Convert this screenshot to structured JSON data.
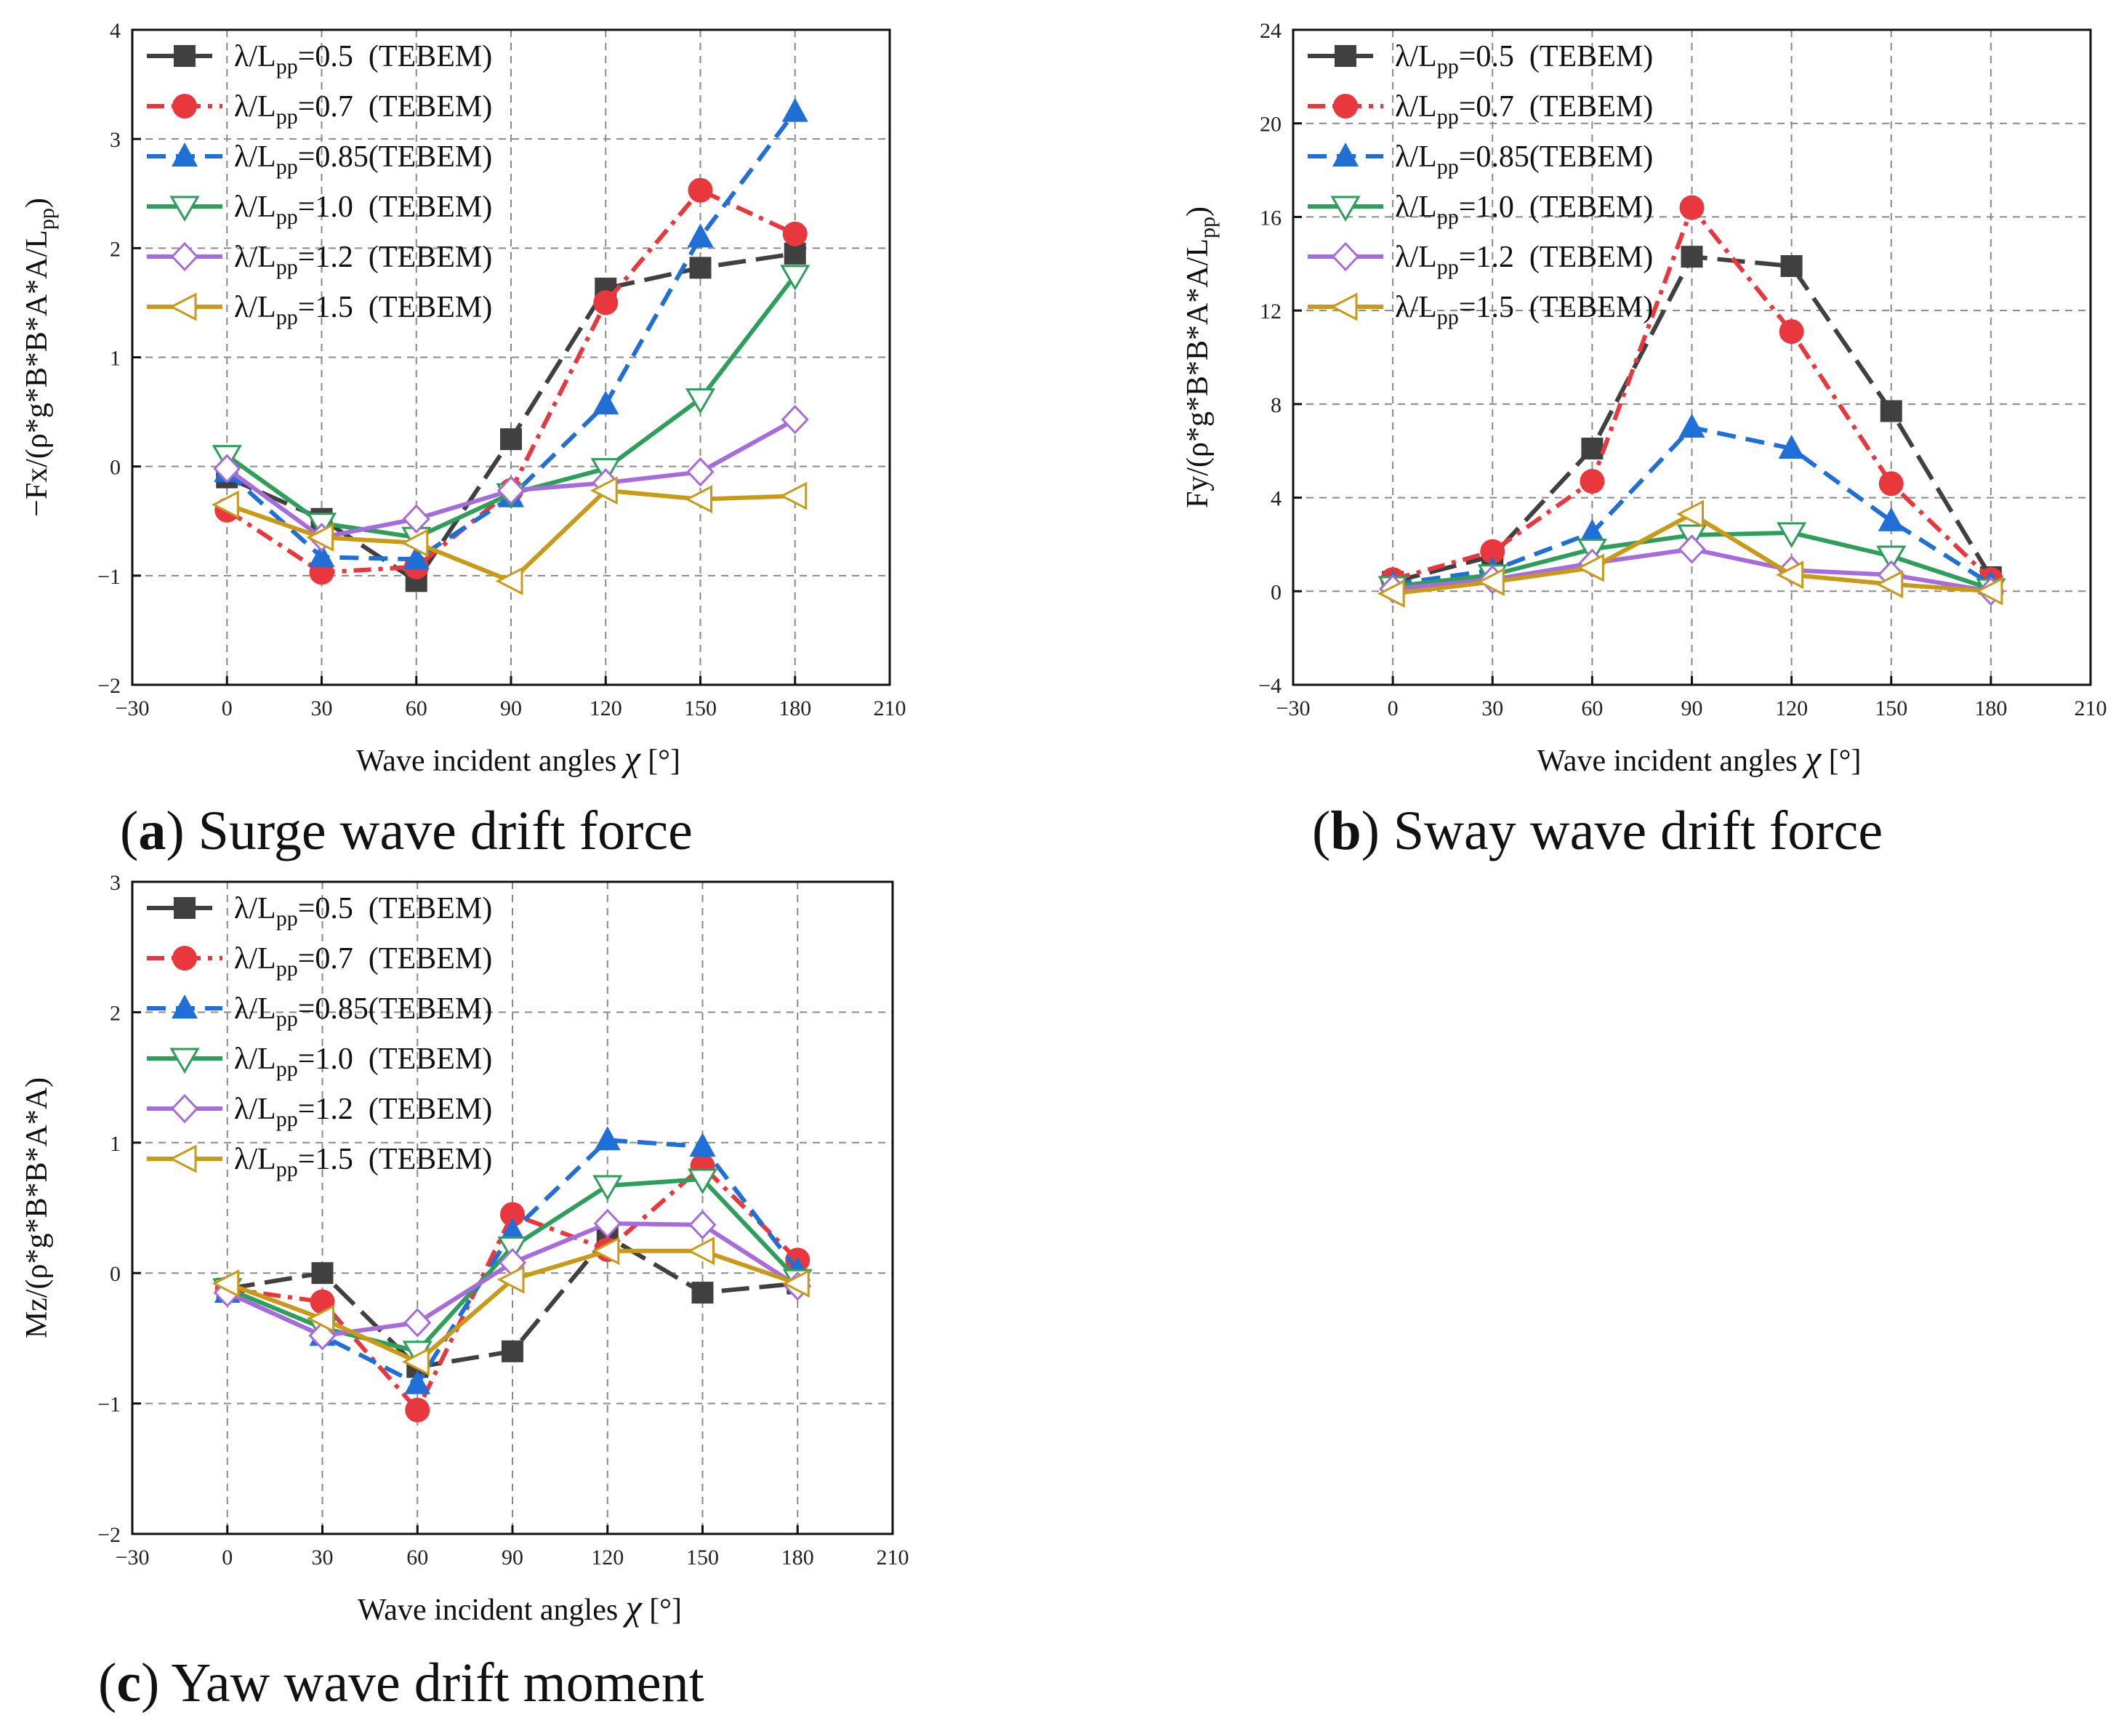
{
  "panels": [
    {
      "caption_letter": "(a)",
      "caption_text": " Surge wave drift force",
      "chart_data": {
        "type": "line",
        "xlabel": "Wave incident angles χ [°]",
        "ylabel": "−Fx/(ρ*g*B*B*A*A/Lpp)",
        "xlim": [
          -30,
          210
        ],
        "ylim": [
          -2,
          4
        ],
        "xticks": [
          -30,
          0,
          30,
          60,
          90,
          120,
          150,
          180,
          210
        ],
        "yticks": [
          -2,
          -1,
          0,
          1,
          2,
          3,
          4
        ],
        "xtick_labels": [
          "−30",
          "0",
          "30",
          "60",
          "90",
          "120",
          "150",
          "180",
          "210"
        ],
        "ytick_labels": [
          "−2",
          "−1",
          "0",
          "1",
          "2",
          "3",
          "4"
        ],
        "grid": true,
        "legend_position": "top-left",
        "x": [
          0,
          30,
          60,
          90,
          120,
          150,
          180
        ],
        "series": [
          {
            "name": "λ/Lpp=0.5  (TEBEM)",
            "values": [
              -0.1,
              -0.48,
              -1.05,
              0.25,
              1.63,
              1.82,
              1.95
            ]
          },
          {
            "name": "λ/Lpp=0.7  (TEBEM)",
            "values": [
              -0.4,
              -0.97,
              -0.92,
              -0.22,
              1.5,
              2.53,
              2.13
            ]
          },
          {
            "name": "λ/Lpp=0.85(TEBEM)",
            "values": [
              -0.05,
              -0.83,
              -0.85,
              -0.28,
              0.57,
              2.1,
              3.25
            ]
          },
          {
            "name": "λ/Lpp=1.0  (TEBEM)",
            "values": [
              0.1,
              -0.52,
              -0.65,
              -0.25,
              -0.02,
              0.62,
              1.75
            ]
          },
          {
            "name": "λ/Lpp=1.2  (TEBEM)",
            "values": [
              -0.02,
              -0.65,
              -0.48,
              -0.22,
              -0.15,
              -0.05,
              0.43
            ]
          },
          {
            "name": "λ/Lpp=1.5  (TEBEM)",
            "values": [
              -0.35,
              -0.65,
              -0.7,
              -1.05,
              -0.22,
              -0.3,
              -0.27
            ]
          }
        ]
      }
    },
    {
      "caption_letter": "(b)",
      "caption_text": " Sway wave drift force",
      "chart_data": {
        "type": "line",
        "xlabel": "Wave incident angles χ [°]",
        "ylabel": "Fy/(ρ*g*B*B*A*A/Lpp)",
        "xlim": [
          -30,
          210
        ],
        "ylim": [
          -4,
          24
        ],
        "xticks": [
          -30,
          0,
          30,
          60,
          90,
          120,
          150,
          180,
          210
        ],
        "yticks": [
          -4,
          0,
          4,
          8,
          12,
          16,
          20,
          24
        ],
        "xtick_labels": [
          "−30",
          "0",
          "30",
          "60",
          "90",
          "120",
          "150",
          "180",
          "210"
        ],
        "ytick_labels": [
          "−4",
          "0",
          "4",
          "8",
          "12",
          "16",
          "20",
          "24"
        ],
        "grid": true,
        "legend_position": "top-left",
        "x": [
          0,
          30,
          60,
          90,
          120,
          150,
          180
        ],
        "series": [
          {
            "name": "λ/Lpp=0.5  (TEBEM)",
            "values": [
              0.4,
              1.5,
              6.1,
              14.3,
              13.9,
              7.7,
              0.6
            ]
          },
          {
            "name": "λ/Lpp=0.7  (TEBEM)",
            "values": [
              0.5,
              1.7,
              4.7,
              16.4,
              11.1,
              4.6,
              0.5
            ]
          },
          {
            "name": "λ/Lpp=0.85(TEBEM)",
            "values": [
              0.3,
              0.9,
              2.5,
              7.0,
              6.1,
              3.0,
              0.3
            ]
          },
          {
            "name": "λ/Lpp=1.0  (TEBEM)",
            "values": [
              0.2,
              0.7,
              1.8,
              2.4,
              2.5,
              1.5,
              0.1
            ]
          },
          {
            "name": "λ/Lpp=1.2  (TEBEM)",
            "values": [
              0.1,
              0.5,
              1.2,
              1.8,
              0.9,
              0.7,
              0.0
            ]
          },
          {
            "name": "λ/Lpp=1.5  (TEBEM)",
            "values": [
              -0.1,
              0.4,
              1.0,
              3.3,
              0.7,
              0.3,
              0.0
            ]
          }
        ]
      }
    },
    {
      "caption_letter": "(c)",
      "caption_text": " Yaw wave drift moment",
      "chart_data": {
        "type": "line",
        "xlabel": "Wave incident angles χ [°]",
        "ylabel": "Mz/(ρ*g*B*B*A*A)",
        "xlim": [
          -30,
          210
        ],
        "ylim": [
          -2,
          3
        ],
        "xticks": [
          -30,
          0,
          30,
          60,
          90,
          120,
          150,
          180,
          210
        ],
        "yticks": [
          -2,
          -1,
          0,
          1,
          2,
          3
        ],
        "xtick_labels": [
          "−30",
          "0",
          "30",
          "60",
          "90",
          "120",
          "150",
          "180",
          "210"
        ],
        "ytick_labels": [
          "−2",
          "−1",
          "0",
          "1",
          "2",
          "3"
        ],
        "grid": true,
        "legend_position": "top-left",
        "x": [
          0,
          30,
          60,
          90,
          120,
          150,
          180
        ],
        "series": [
          {
            "name": "λ/Lpp=0.5  (TEBEM)",
            "values": [
              -0.12,
              0.0,
              -0.72,
              -0.6,
              0.28,
              -0.15,
              -0.08
            ]
          },
          {
            "name": "λ/Lpp=0.7  (TEBEM)",
            "values": [
              -0.12,
              -0.22,
              -1.05,
              0.45,
              0.18,
              0.82,
              0.1
            ]
          },
          {
            "name": "λ/Lpp=0.85(TEBEM)",
            "values": [
              -0.15,
              -0.48,
              -0.85,
              0.32,
              1.02,
              0.97,
              0.02
            ]
          },
          {
            "name": "λ/Lpp=1.0  (TEBEM)",
            "values": [
              -0.12,
              -0.42,
              -0.6,
              0.2,
              0.67,
              0.72,
              -0.05
            ]
          },
          {
            "name": "λ/Lpp=1.2  (TEBEM)",
            "values": [
              -0.15,
              -0.48,
              -0.38,
              0.08,
              0.38,
              0.37,
              -0.1
            ]
          },
          {
            "name": "λ/Lpp=1.5  (TEBEM)",
            "values": [
              -0.08,
              -0.35,
              -0.68,
              -0.05,
              0.17,
              0.17,
              -0.08
            ]
          }
        ]
      }
    }
  ],
  "series_styles": [
    {
      "color": "#404040",
      "dash": "38,14",
      "marker": "square-filled"
    },
    {
      "color": "#e8383d",
      "dash": "24,10,6,10",
      "marker": "circle-filled"
    },
    {
      "color": "#1f6fd6",
      "dash": "26,14",
      "marker": "triangle-up-filled"
    },
    {
      "color": "#2e9e5b",
      "dash": "none",
      "marker": "triangle-down-open"
    },
    {
      "color": "#a66cdc",
      "dash": "none",
      "marker": "diamond-open"
    },
    {
      "color": "#c99a17",
      "dash": "none",
      "marker": "triangle-left-open"
    }
  ]
}
